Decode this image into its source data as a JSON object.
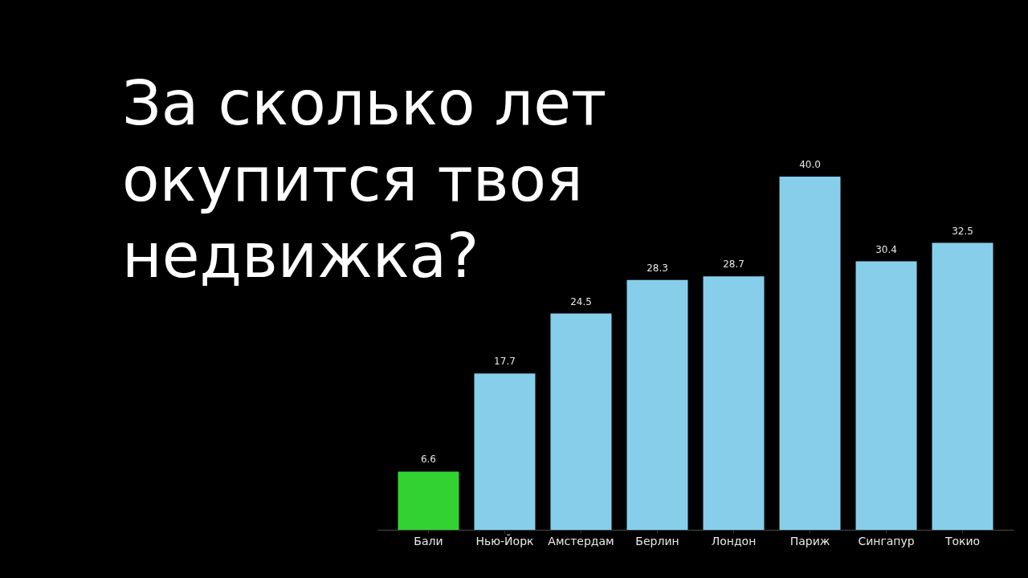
{
  "chart_data": {
    "type": "bar",
    "title": "За сколько лет окупится твоя недвижка?",
    "categories": [
      "Бали",
      "Нью-Йорк",
      "Амстердам",
      "Берлин",
      "Лондон",
      "Париж",
      "Сингапур",
      "Токио"
    ],
    "values": [
      6.6,
      17.7,
      24.5,
      28.3,
      28.7,
      40.0,
      30.4,
      32.5
    ],
    "value_labels": [
      "6.6",
      "17.7",
      "24.5",
      "28.3",
      "28.7",
      "40.0",
      "30.4",
      "32.5"
    ],
    "colors": [
      "#32d232",
      "#87ceeb",
      "#87ceeb",
      "#87ceeb",
      "#87ceeb",
      "#87ceeb",
      "#87ceeb",
      "#87ceeb"
    ]
  }
}
